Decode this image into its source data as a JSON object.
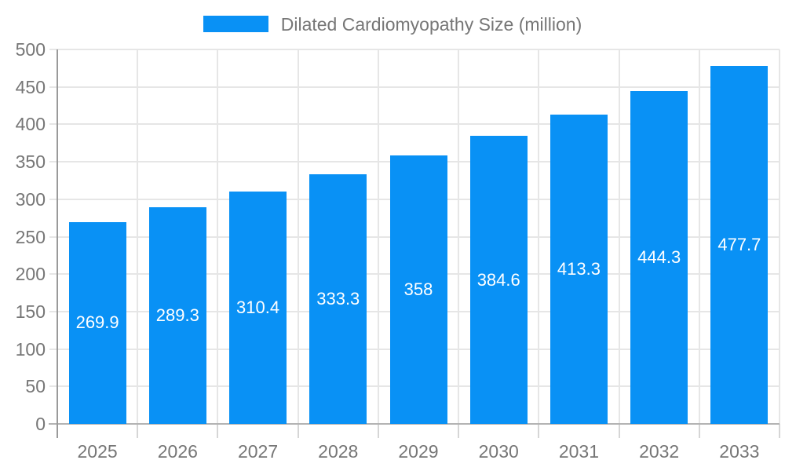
{
  "chart_data": {
    "type": "bar",
    "title": "",
    "legend": "Dilated Cardiomyopathy Size (million)",
    "legend_position": "top",
    "categories": [
      "2025",
      "2026",
      "2027",
      "2028",
      "2029",
      "2030",
      "2031",
      "2032",
      "2033"
    ],
    "values": [
      269.9,
      289.3,
      310.4,
      333.3,
      358,
      384.6,
      413.3,
      444.3,
      477.7
    ],
    "value_labels": [
      "269.9",
      "289.3",
      "310.4",
      "333.3",
      "358",
      "384.6",
      "413.3",
      "444.3",
      "477.7"
    ],
    "xlabel": "",
    "ylabel": "",
    "ylim": [
      0,
      500
    ],
    "ytick_step": 50,
    "ytick_labels": [
      "0",
      "50",
      "100",
      "150",
      "200",
      "250",
      "300",
      "350",
      "400",
      "450",
      "500"
    ],
    "grid": true,
    "colors": {
      "bar": "#0991f5",
      "grid": "#e6e6e6",
      "axis_y": "#9a9a9a",
      "axis_x": "#b3b3b3",
      "tick_minor": "#d6d6d6",
      "label": "#767676",
      "value_text": "#ffffff",
      "background": "#ffffff"
    }
  }
}
